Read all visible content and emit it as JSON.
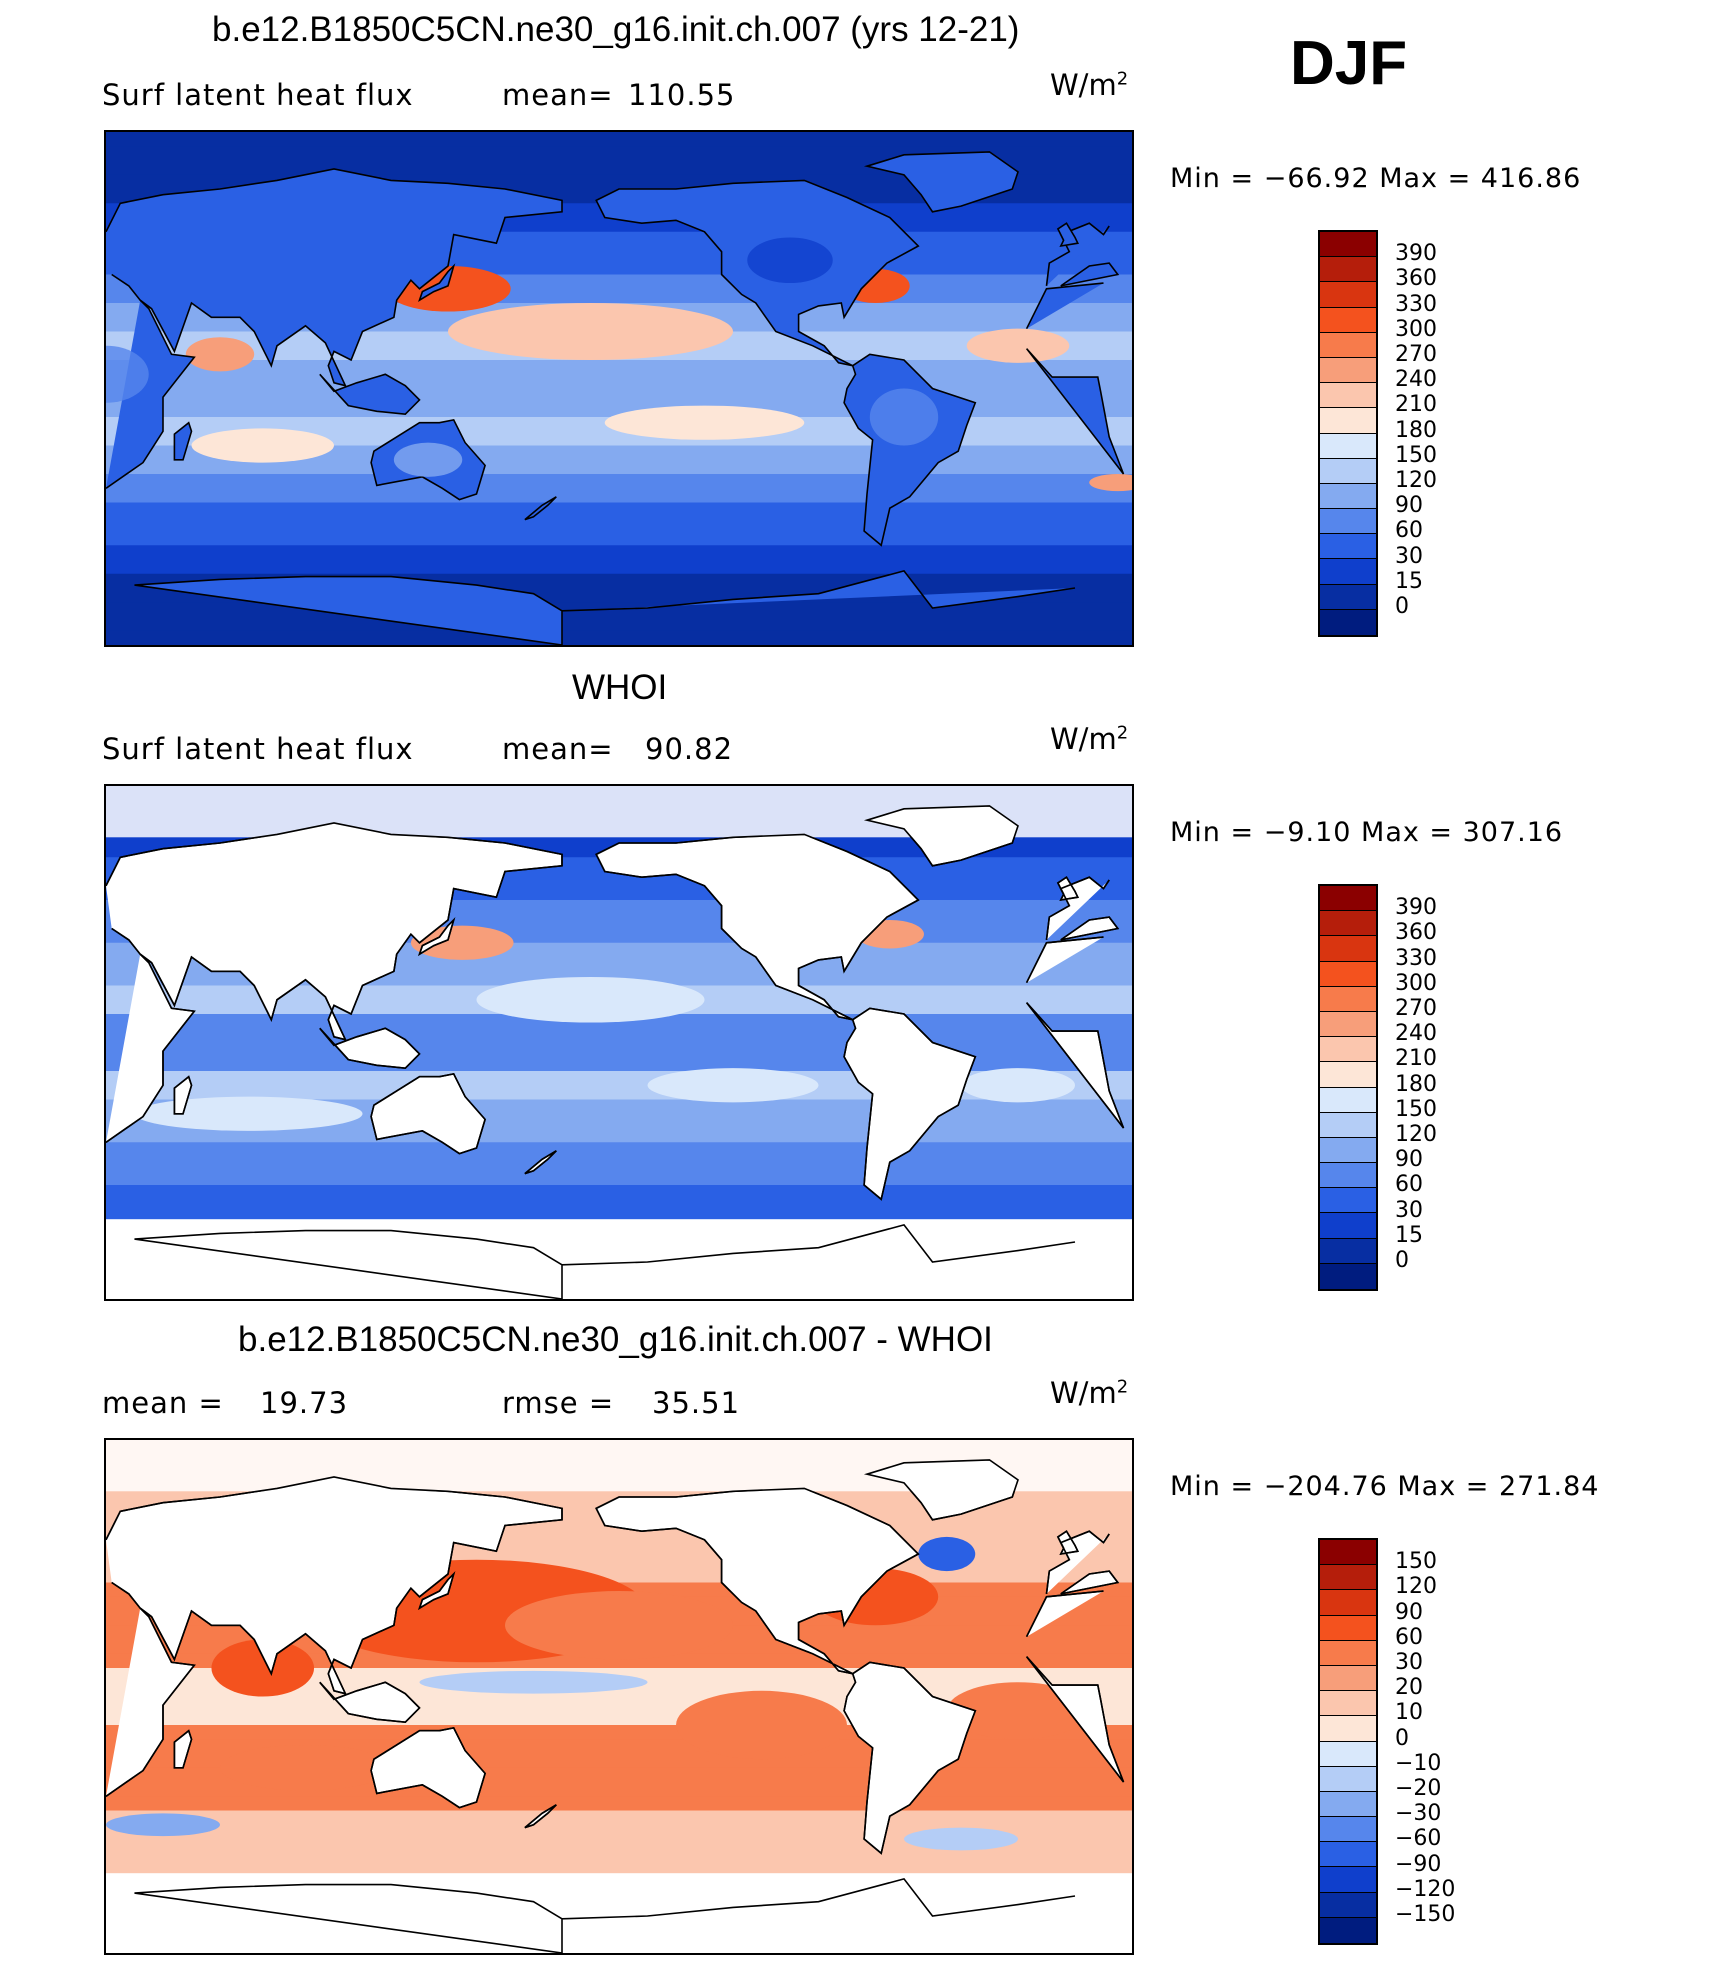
{
  "season": "DJF",
  "panels": [
    {
      "title": "b.e12.B1850C5CN.ne30_g16.init.ch.007 (yrs 12-21)",
      "left_label": "Surf latent heat flux",
      "stat_label": "mean=",
      "stat_value": "110.55",
      "units": "W/m",
      "units_sup": "2",
      "minmax": "Min = −66.92 Max = 416.86",
      "map_mode": "model",
      "colorbar": {
        "labels": [
          "390",
          "360",
          "330",
          "300",
          "270",
          "240",
          "210",
          "180",
          "150",
          "120",
          "90",
          "60",
          "30",
          "15",
          "0"
        ],
        "colors": [
          "#8b0000",
          "#b51e0b",
          "#d93510",
          "#f4521e",
          "#f77b4b",
          "#f79e7a",
          "#fbc6ae",
          "#fde6d7",
          "#d9e8fb",
          "#b4cdf6",
          "#84aaf0",
          "#5686ec",
          "#2a60e4",
          "#0f3fcc",
          "#072ea2",
          "#001c7f"
        ]
      }
    },
    {
      "title": "WHOI",
      "left_label": "Surf latent heat flux",
      "stat_label": "mean=",
      "stat_value": "90.82",
      "units": "W/m",
      "units_sup": "2",
      "minmax": "Min =  −9.10 Max = 307.16",
      "map_mode": "obs",
      "colorbar": {
        "labels": [
          "390",
          "360",
          "330",
          "300",
          "270",
          "240",
          "210",
          "180",
          "150",
          "120",
          "90",
          "60",
          "30",
          "15",
          "0"
        ],
        "colors": [
          "#8b0000",
          "#b51e0b",
          "#d93510",
          "#f4521e",
          "#f77b4b",
          "#f79e7a",
          "#fbc6ae",
          "#fde6d7",
          "#d9e8fb",
          "#b4cdf6",
          "#84aaf0",
          "#5686ec",
          "#2a60e4",
          "#0f3fcc",
          "#072ea2",
          "#001c7f"
        ]
      }
    },
    {
      "title": "b.e12.B1850C5CN.ne30_g16.init.ch.007 - WHOI",
      "left_label": "mean =",
      "left_value": "19.73",
      "stat_label": "rmse =",
      "stat_value": "35.51",
      "units": "W/m",
      "units_sup": "2",
      "minmax": "Min = −204.76 Max = 271.84",
      "map_mode": "diff",
      "colorbar": {
        "labels": [
          "150",
          "120",
          "90",
          "60",
          "30",
          "20",
          "10",
          "0",
          "−10",
          "−20",
          "−30",
          "−60",
          "−90",
          "−120",
          "−150"
        ],
        "colors": [
          "#8b0000",
          "#b51e0b",
          "#d93510",
          "#f4521e",
          "#f77b4b",
          "#f79e7a",
          "#fbc6ae",
          "#fde6d7",
          "#d9e8fb",
          "#b4cdf6",
          "#84aaf0",
          "#5686ec",
          "#2a60e4",
          "#0f3fcc",
          "#072ea2",
          "#001c7f"
        ]
      }
    }
  ]
}
